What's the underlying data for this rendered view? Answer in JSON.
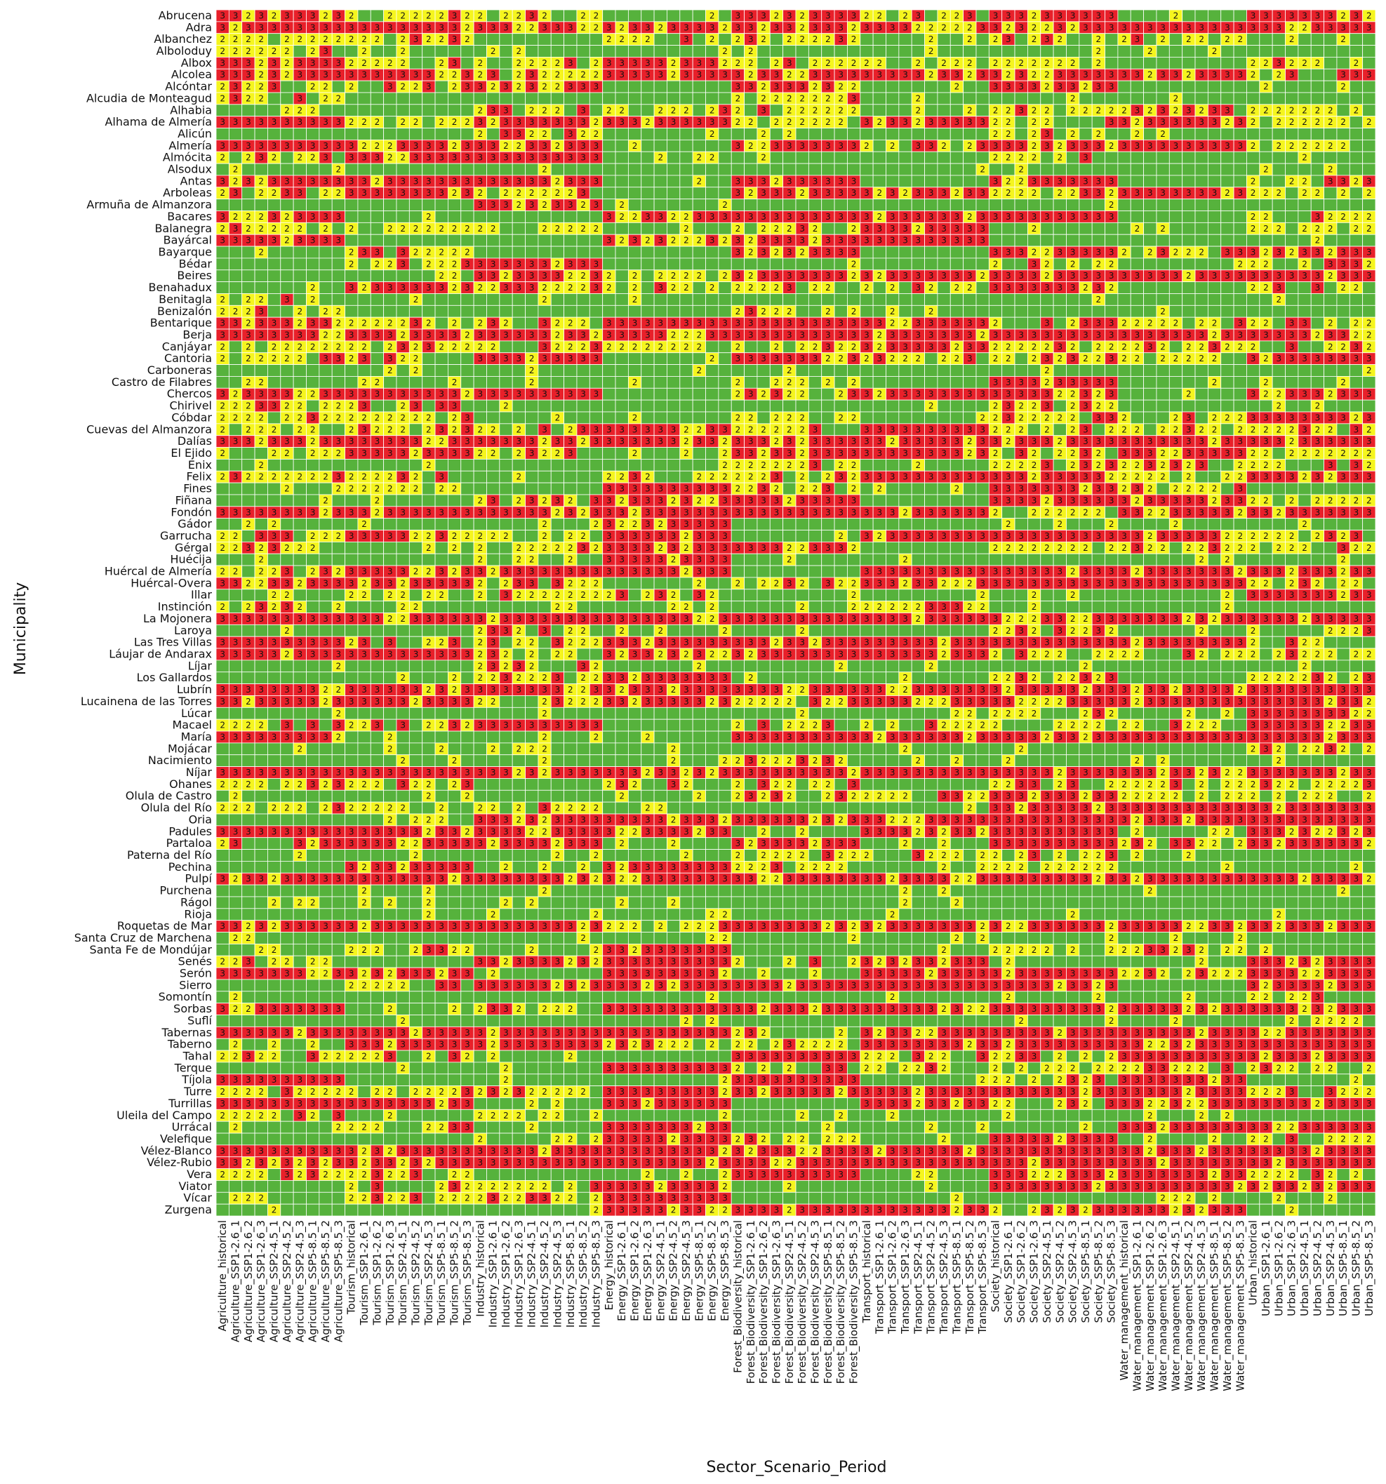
{
  "chart_data": {
    "type": "heatmap",
    "title": "",
    "xlabel": "Sector_Scenario_Period",
    "ylabel": "Municipality",
    "colors": {
      "1": "#56b23c",
      "2": "#f5f51e",
      "3": "#e8202a"
    },
    "grid_lines": "white",
    "rows": [
      "Abrucena",
      "Adra",
      "Albanchez",
      "Alboloduy",
      "Albox",
      "Alcolea",
      "Alcóntar",
      "Alcudia de Monteagud",
      "Alhabia",
      "Alhama de Almería",
      "Alicún",
      "Almería",
      "Almócita",
      "Alsodux",
      "Antas",
      "Arboleas",
      "Armuña de Almanzora",
      "Bacares",
      "Balanegra",
      "Bayárcal",
      "Bayarque",
      "Bédar",
      "Beires",
      "Benahadux",
      "Benitagla",
      "Benizalón",
      "Bentarique",
      "Berja",
      "Canjáyar",
      "Cantoria",
      "Carboneras",
      "Castro de Filabres",
      "Chercos",
      "Chirivel",
      "Cóbdar",
      "Cuevas del Almanzora",
      "Dalías",
      "El Ejido",
      "Enix",
      "Felix",
      "Fines",
      "Fiñana",
      "Fondón",
      "Gádor",
      "Garrucha",
      "Gérgal",
      "Huécija",
      "Huércal de Almería",
      "Huércal-Overa",
      "Illar",
      "Instinción",
      "La Mojonera",
      "Laroya",
      "Las Tres Villas",
      "Láujar de Andarax",
      "Líjar",
      "Los Gallardos",
      "Lubrín",
      "Lucainena de las Torres",
      "Lúcar",
      "Macael",
      "María",
      "Mojácar",
      "Nacimiento",
      "Níjar",
      "Ohanes",
      "Olula de Castro",
      "Olula del Río",
      "Oria",
      "Padules",
      "Partaloa",
      "Paterna del Río",
      "Pechina",
      "Pulpí",
      "Purchena",
      "Rágol",
      "Rioja",
      "Roquetas de Mar",
      "Santa Cruz de Marchena",
      "Santa Fe de Mondújar",
      "Senés",
      "Serón",
      "Sierro",
      "Somontín",
      "Sorbas",
      "Suflí",
      "Tabernas",
      "Taberno",
      "Tahal",
      "Terque",
      "Tíjola",
      "Turre",
      "Turrillas",
      "Uleila del Campo",
      "Urrácal",
      "Velefique",
      "Vélez-Blanco",
      "Vélez-Rubio",
      "Vera",
      "Viator",
      "Vícar",
      "Zurgena"
    ],
    "columns": [
      "Agriculture_historical",
      "Agriculture_SSP1-2.6_1",
      "Agriculture_SSP1-2.6_2",
      "Agriculture_SSP1-2.6_3",
      "Agriculture_SSP2-4.5_1",
      "Agriculture_SSP2-4.5_2",
      "Agriculture_SSP2-4.5_3",
      "Agriculture_SSP5-8.5_1",
      "Agriculture_SSP5-8.5_2",
      "Agriculture_SSP5-8.5_3",
      "Tourism_historical",
      "Tourism_SSP1-2.6_1",
      "Tourism_SSP1-2.6_2",
      "Tourism_SSP1-2.6_3",
      "Tourism_SSP2-4.5_1",
      "Tourism_SSP2-4.5_2",
      "Tourism_SSP2-4.5_3",
      "Tourism_SSP5-8.5_1",
      "Tourism_SSP5-8.5_2",
      "Tourism_SSP5-8.5_3",
      "Industry_historical",
      "Industry_SSP1-2.6_1",
      "Industry_SSP1-2.6_2",
      "Industry_SSP1-2.6_3",
      "Industry_SSP2-4.5_1",
      "Industry_SSP2-4.5_2",
      "Industry_SSP2-4.5_3",
      "Industry_SSP5-8.5_1",
      "Industry_SSP5-8.5_2",
      "Industry_SSP5-8.5_3",
      "Energy_historical",
      "Energy_SSP1-2.6_1",
      "Energy_SSP1-2.6_2",
      "Energy_SSP1-2.6_3",
      "Energy_SSP2-4.5_1",
      "Energy_SSP2-4.5_2",
      "Energy_SSP2-4.5_3",
      "Energy_SSP5-8.5_1",
      "Energy_SSP5-8.5_2",
      "Energy_SSP5-8.5_3",
      "Forest_Biodiversity_historical",
      "Forest_Biodiversity_SSP1-2.6_1",
      "Forest_Biodiversity_SSP1-2.6_2",
      "Forest_Biodiversity_SSP1-2.6_3",
      "Forest_Biodiversity_SSP2-4.5_1",
      "Forest_Biodiversity_SSP2-4.5_2",
      "Forest_Biodiversity_SSP2-4.5_3",
      "Forest_Biodiversity_SSP5-8.5_1",
      "Forest_Biodiversity_SSP5-8.5_2",
      "Forest_Biodiversity_SSP5-8.5_3",
      "Transport_historical",
      "Transport_SSP1-2.6_1",
      "Transport_SSP1-2.6_2",
      "Transport_SSP1-2.6_3",
      "Transport_SSP2-4.5_1",
      "Transport_SSP2-4.5_2",
      "Transport_SSP2-4.5_3",
      "Transport_SSP5-8.5_1",
      "Transport_SSP5-8.5_2",
      "Transport_SSP5-8.5_3",
      "Society_historical",
      "Society_SSP1-2.6_1",
      "Society_SSP1-2.6_2",
      "Society_SSP1-2.6_3",
      "Society_SSP2-4.5_1",
      "Society_SSP2-4.5_2",
      "Society_SSP2-4.5_3",
      "Society_SSP5-8.5_1",
      "Society_SSP5-8.5_2",
      "Society_SSP5-8.5_3",
      "Water_management_historical",
      "Water_management_SSP1-2.6_1",
      "Water_management_SSP1-2.6_2",
      "Water_management_SSP1-2.6_3",
      "Water_management_SSP2-4.5_1",
      "Water_management_SSP2-4.5_2",
      "Water_management_SSP2-4.5_3",
      "Water_management_SSP5-8.5_1",
      "Water_management_SSP5-8.5_2",
      "Water_management_SSP5-8.5_3",
      "Urban_historical",
      "Urban_SSP1-2.6_1",
      "Urban_SSP1-2.6_2",
      "Urban_SSP1-2.6_3",
      "Urban_SSP2-4.5_1",
      "Urban_SSP2-4.5_2",
      "Urban_SSP2-4.5_3",
      "Urban_SSP5-8.5_1",
      "Urban_SSP5-8.5_2",
      "Urban_SSP5-8.5_3"
    ],
    "segment_values": [
      [
        3,
        2,
        2,
        1,
        3,
        2,
        3,
        1,
        3,
        2
      ],
      [
        3,
        3,
        3,
        3,
        3,
        3,
        3,
        3,
        3,
        3
      ],
      [
        2,
        2,
        1,
        2,
        2,
        1,
        2,
        2,
        1,
        2
      ],
      [
        2,
        1,
        1,
        1,
        1,
        1,
        1,
        1,
        1,
        1
      ],
      [
        3,
        2,
        2,
        3,
        2,
        2,
        2,
        1,
        2,
        3
      ],
      [
        3,
        3,
        2,
        3,
        3,
        3,
        3,
        3,
        2,
        3
      ],
      [
        2,
        2,
        3,
        1,
        3,
        1,
        3,
        1,
        1,
        2
      ],
      [
        2,
        1,
        1,
        1,
        2,
        1,
        1,
        1,
        1,
        1
      ],
      [
        1,
        1,
        2,
        2,
        2,
        1,
        2,
        2,
        2,
        1
      ],
      [
        3,
        2,
        3,
        3,
        2,
        3,
        2,
        3,
        2,
        3
      ],
      [
        1,
        1,
        2,
        1,
        1,
        1,
        2,
        1,
        1,
        1
      ],
      [
        3,
        3,
        3,
        1,
        3,
        2,
        3,
        3,
        2,
        3
      ],
      [
        2,
        3,
        3,
        1,
        1,
        1,
        2,
        1,
        1,
        3
      ],
      [
        1,
        1,
        1,
        1,
        1,
        1,
        1,
        1,
        1,
        1
      ],
      [
        3,
        3,
        3,
        1,
        3,
        1,
        3,
        1,
        2,
        1
      ],
      [
        2,
        3,
        2,
        1,
        3,
        3,
        2,
        3,
        2,
        2
      ],
      [
        1,
        1,
        3,
        1,
        1,
        1,
        1,
        1,
        1,
        1
      ],
      [
        3,
        1,
        1,
        3,
        3,
        3,
        3,
        1,
        2,
        1
      ],
      [
        2,
        2,
        2,
        1,
        2,
        3,
        1,
        1,
        2,
        1
      ],
      [
        3,
        1,
        1,
        3,
        3,
        3,
        1,
        1,
        1,
        3
      ],
      [
        1,
        2,
        1,
        1,
        3,
        1,
        3,
        2,
        3,
        1
      ],
      [
        1,
        2,
        3,
        1,
        1,
        1,
        2,
        1,
        2,
        1
      ],
      [
        1,
        1,
        3,
        2,
        3,
        3,
        3,
        3,
        3,
        3
      ],
      [
        1,
        3,
        2,
        2,
        2,
        2,
        3,
        1,
        2,
        1
      ],
      [
        2,
        1,
        1,
        1,
        1,
        1,
        1,
        1,
        1,
        1
      ],
      [
        2,
        1,
        1,
        1,
        2,
        1,
        1,
        1,
        1,
        1
      ],
      [
        3,
        2,
        2,
        3,
        3,
        3,
        2,
        2,
        2,
        3
      ],
      [
        3,
        3,
        3,
        3,
        3,
        3,
        3,
        3,
        3,
        3
      ],
      [
        2,
        2,
        2,
        2,
        2,
        3,
        2,
        2,
        2,
        1
      ],
      [
        2,
        2,
        3,
        1,
        3,
        2,
        2,
        2,
        3,
        3
      ],
      [
        1,
        1,
        1,
        1,
        1,
        1,
        1,
        1,
        1,
        1
      ],
      [
        1,
        1,
        1,
        1,
        2,
        1,
        3,
        1,
        1,
        1
      ],
      [
        3,
        3,
        3,
        1,
        2,
        3,
        3,
        1,
        3,
        1
      ],
      [
        2,
        2,
        1,
        1,
        1,
        1,
        2,
        1,
        1,
        3
      ],
      [
        2,
        2,
        1,
        1,
        2,
        1,
        2,
        2,
        3,
        3
      ],
      [
        2,
        2,
        2,
        3,
        2,
        3,
        2,
        2,
        2,
        2
      ],
      [
        3,
        3,
        3,
        3,
        3,
        3,
        3,
        3,
        3,
        2
      ],
      [
        2,
        3,
        2,
        1,
        3,
        3,
        2,
        3,
        2,
        2
      ],
      [
        1,
        1,
        1,
        1,
        2,
        1,
        2,
        2,
        2,
        1
      ],
      [
        2,
        2,
        1,
        2,
        2,
        3,
        3,
        2,
        3,
        3
      ],
      [
        1,
        2,
        1,
        3,
        2,
        1,
        3,
        2,
        1,
        3
      ],
      [
        1,
        1,
        2,
        3,
        3,
        1,
        3,
        3,
        2,
        2
      ],
      [
        3,
        3,
        3,
        3,
        3,
        3,
        2,
        3,
        3,
        3
      ],
      [
        1,
        1,
        1,
        3,
        1,
        1,
        1,
        1,
        1,
        2
      ],
      [
        2,
        3,
        2,
        3,
        1,
        3,
        3,
        3,
        2,
        3
      ],
      [
        2,
        1,
        2,
        3,
        3,
        1,
        2,
        2,
        2,
        3
      ],
      [
        1,
        1,
        2,
        3,
        1,
        1,
        1,
        1,
        1,
        2
      ],
      [
        2,
        3,
        3,
        3,
        1,
        3,
        3,
        3,
        3,
        3
      ],
      [
        3,
        3,
        2,
        1,
        2,
        3,
        3,
        3,
        2,
        3
      ],
      [
        1,
        2,
        2,
        2,
        1,
        1,
        1,
        1,
        3,
        1
      ],
      [
        2,
        1,
        1,
        1,
        1,
        2,
        1,
        1,
        1,
        1
      ],
      [
        3,
        3,
        3,
        3,
        3,
        3,
        3,
        3,
        3,
        3
      ],
      [
        1,
        1,
        2,
        1,
        1,
        1,
        2,
        1,
        2,
        1
      ],
      [
        3,
        2,
        2,
        3,
        3,
        3,
        3,
        3,
        2,
        2
      ],
      [
        3,
        3,
        2,
        3,
        3,
        3,
        2,
        2,
        2,
        2
      ],
      [
        1,
        1,
        2,
        1,
        1,
        1,
        1,
        1,
        1,
        1
      ],
      [
        1,
        1,
        2,
        3,
        1,
        1,
        2,
        1,
        2,
        2
      ],
      [
        3,
        3,
        3,
        3,
        3,
        3,
        3,
        3,
        3,
        2
      ],
      [
        3,
        3,
        2,
        3,
        2,
        3,
        3,
        3,
        3,
        3
      ],
      [
        1,
        1,
        1,
        1,
        1,
        1,
        2,
        1,
        3,
        1
      ],
      [
        2,
        2,
        3,
        1,
        2,
        2,
        2,
        2,
        3,
        3
      ],
      [
        3,
        1,
        1,
        1,
        3,
        3,
        3,
        3,
        3,
        3
      ],
      [
        1,
        1,
        1,
        1,
        1,
        1,
        1,
        1,
        2,
        1
      ],
      [
        1,
        1,
        1,
        1,
        2,
        1,
        1,
        1,
        1,
        2
      ],
      [
        3,
        3,
        3,
        3,
        3,
        3,
        3,
        3,
        3,
        3
      ],
      [
        2,
        2,
        1,
        2,
        2,
        1,
        2,
        2,
        2,
        3
      ],
      [
        1,
        1,
        1,
        1,
        2,
        2,
        3,
        2,
        2,
        1
      ],
      [
        2,
        2,
        2,
        1,
        1,
        1,
        3,
        3,
        3,
        3
      ],
      [
        1,
        1,
        3,
        3,
        3,
        3,
        3,
        3,
        3,
        3
      ],
      [
        3,
        3,
        3,
        3,
        1,
        3,
        3,
        1,
        3,
        3
      ],
      [
        2,
        3,
        3,
        1,
        3,
        1,
        3,
        2,
        3,
        3
      ],
      [
        1,
        1,
        1,
        1,
        2,
        2,
        2,
        1,
        1,
        1
      ],
      [
        1,
        3,
        1,
        3,
        2,
        1,
        2,
        1,
        1,
        1
      ],
      [
        3,
        3,
        3,
        3,
        3,
        3,
        3,
        3,
        3,
        3
      ],
      [
        1,
        1,
        1,
        1,
        1,
        1,
        1,
        1,
        1,
        2
      ],
      [
        1,
        1,
        1,
        1,
        1,
        1,
        1,
        1,
        1,
        1
      ],
      [
        1,
        1,
        1,
        1,
        1,
        1,
        1,
        1,
        1,
        1
      ],
      [
        3,
        3,
        3,
        2,
        3,
        3,
        3,
        3,
        3,
        3
      ],
      [
        1,
        1,
        1,
        1,
        1,
        1,
        1,
        1,
        1,
        1
      ],
      [
        1,
        2,
        1,
        3,
        1,
        1,
        2,
        2,
        1,
        1
      ],
      [
        2,
        1,
        3,
        3,
        2,
        3,
        1,
        1,
        3,
        2
      ],
      [
        3,
        3,
        1,
        3,
        1,
        3,
        3,
        2,
        3,
        2
      ],
      [
        1,
        2,
        3,
        3,
        3,
        3,
        3,
        1,
        3,
        2
      ],
      [
        1,
        1,
        1,
        1,
        1,
        1,
        1,
        1,
        2,
        2
      ],
      [
        3,
        1,
        2,
        3,
        3,
        3,
        3,
        3,
        3,
        3
      ],
      [
        1,
        1,
        1,
        1,
        1,
        1,
        1,
        1,
        1,
        1
      ],
      [
        3,
        3,
        3,
        3,
        2,
        3,
        3,
        3,
        3,
        3
      ],
      [
        1,
        3,
        3,
        2,
        2,
        3,
        3,
        3,
        3,
        3
      ],
      [
        2,
        2,
        1,
        1,
        3,
        2,
        2,
        3,
        3,
        3
      ],
      [
        1,
        1,
        1,
        3,
        2,
        2,
        2,
        2,
        2,
        2
      ],
      [
        3,
        1,
        1,
        1,
        3,
        1,
        2,
        3,
        1,
        1
      ],
      [
        2,
        2,
        2,
        3,
        3,
        3,
        3,
        3,
        2,
        2
      ],
      [
        3,
        3,
        1,
        3,
        1,
        3,
        2,
        3,
        3,
        1
      ],
      [
        2,
        1,
        2,
        1,
        1,
        1,
        1,
        1,
        1,
        2
      ],
      [
        1,
        2,
        1,
        3,
        1,
        1,
        1,
        3,
        3,
        2
      ],
      [
        1,
        1,
        2,
        3,
        2,
        1,
        3,
        1,
        2,
        2
      ],
      [
        3,
        3,
        3,
        3,
        3,
        3,
        3,
        3,
        3,
        3
      ],
      [
        3,
        3,
        3,
        3,
        3,
        3,
        3,
        3,
        3,
        3
      ],
      [
        2,
        2,
        1,
        1,
        3,
        1,
        3,
        3,
        2,
        2
      ],
      [
        1,
        2,
        2,
        3,
        1,
        1,
        3,
        3,
        3,
        3
      ],
      [
        1,
        2,
        2,
        3,
        1,
        1,
        1,
        1,
        1,
        1
      ],
      [
        1,
        1,
        1,
        3,
        3,
        3,
        2,
        3,
        1,
        2
      ]
    ],
    "notes": "Each cell value is 1 (green), 2 (yellow) or 3 (red); digits 2 and 3 are printed inside cells. segment_values gives the dominant value per row for each of the 10 sectors (Agriculture, Tourism, Industry, Energy, Forest_Biodiversity, Transport, Society, Water_management, Urban, plus Energy scenarios); cells within a sector are approximated from the image."
  }
}
